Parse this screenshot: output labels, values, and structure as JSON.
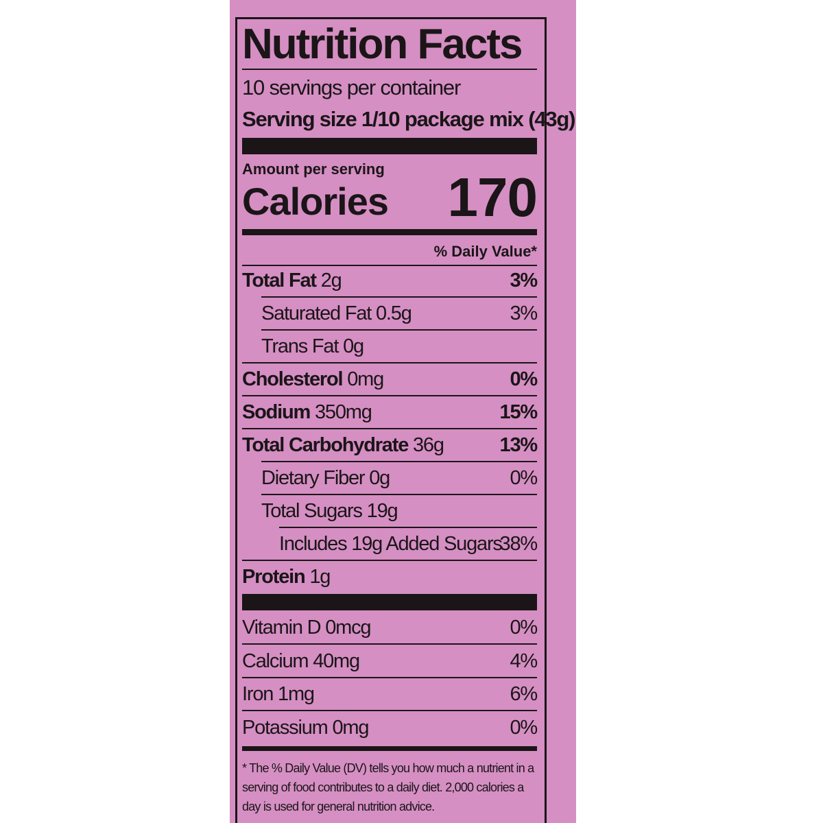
{
  "title": "Nutrition Facts",
  "servings": "10 servings per container",
  "serving_size": "Serving size 1/10 package mix (43g)",
  "amount_per_serving": "Amount per serving",
  "calories": {
    "label": "Calories",
    "value": "170"
  },
  "daily_value_header": "% Daily Value*",
  "nutrients": [
    {
      "name": "Total Fat",
      "amount": "2g",
      "dv": "3%",
      "level": 0
    },
    {
      "name": "Saturated Fat",
      "amount": "0.5g",
      "dv": "3%",
      "level": 1
    },
    {
      "name": "Trans Fat",
      "amount": "0g",
      "level": 1
    },
    {
      "name": "Cholesterol",
      "amount": "0mg",
      "dv": "0%",
      "level": 0
    },
    {
      "name": "Sodium",
      "amount": "350mg",
      "dv": "15%",
      "level": 0
    },
    {
      "name": "Total Carbohydrate",
      "amount": "36g",
      "dv": "13%",
      "level": 0
    },
    {
      "name": "Dietary Fiber",
      "amount": "0g",
      "dv": "0%",
      "level": 1
    },
    {
      "name": "Total Sugars",
      "amount": "19g",
      "level": 1
    },
    {
      "name": "Includes 19g Added Sugars",
      "dv": "38%",
      "level": 2
    },
    {
      "name": "Protein",
      "amount": "1g",
      "level": 0
    }
  ],
  "vitamins": [
    {
      "name": "Vitamin D",
      "amount": "0mcg",
      "dv": "0%"
    },
    {
      "name": "Calcium",
      "amount": "40mg",
      "dv": "4%"
    },
    {
      "name": "Iron",
      "amount": "1mg",
      "dv": "6%"
    },
    {
      "name": "Potassium",
      "amount": "0mg",
      "dv": "0%"
    }
  ],
  "footnote": "* The % Daily Value (DV) tells you how much a nutrient in a serving of food contributes to a daily diet. 2,000 calories a day is used for general nutrition advice."
}
